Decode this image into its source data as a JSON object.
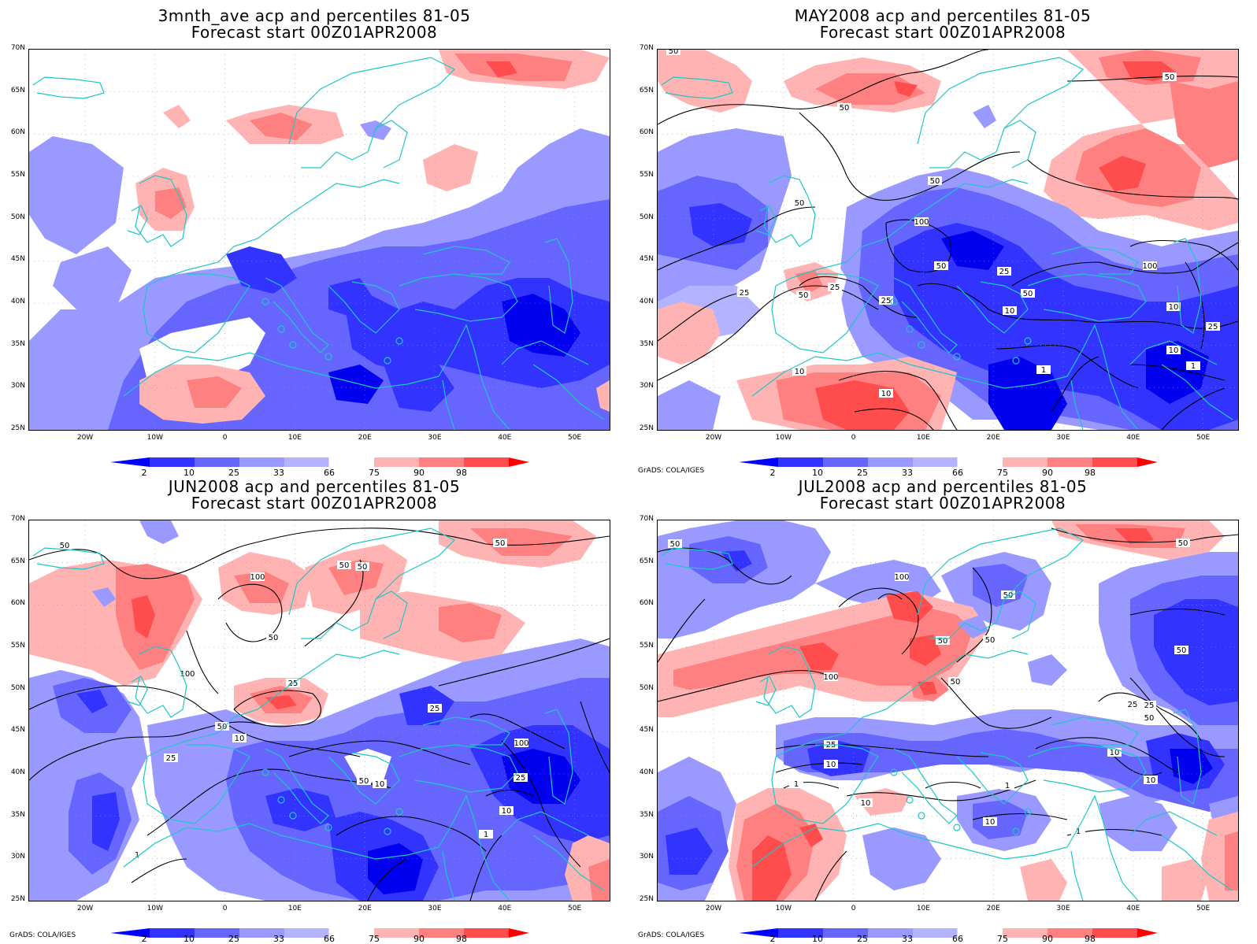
{
  "panels": [
    {
      "title1": "3mnth_ave acp and percentiles 81-05",
      "title2": "Forecast start 00Z01APR2008",
      "credit": ""
    },
    {
      "title1": "MAY2008 acp and percentiles 81-05",
      "title2": "Forecast start 00Z01APR2008",
      "credit": "GrADS: COLA/IGES"
    },
    {
      "title1": "JUN2008 acp and percentiles 81-05",
      "title2": "Forecast start 00Z01APR2008",
      "credit": "GrADS: COLA/IGES"
    },
    {
      "title1": "JUL2008 acp and percentiles 81-05",
      "title2": "Forecast start 00Z01APR2008",
      "credit": "GrADS: COLA/IGES"
    }
  ],
  "axes": {
    "lat_labels": [
      "70N",
      "65N",
      "60N",
      "55N",
      "50N",
      "45N",
      "40N",
      "35N",
      "30N",
      "25N"
    ],
    "lon_labels": [
      "20W",
      "10W",
      "0",
      "10E",
      "20E",
      "30E",
      "40E",
      "50E"
    ],
    "lat_range": [
      25,
      70
    ],
    "lon_range": [
      -28,
      55
    ]
  },
  "colorbar": {
    "labels": [
      "2",
      "10",
      "25",
      "33",
      "66",
      "75",
      "90",
      "98"
    ],
    "colors": [
      "#0000ff",
      "#3333ff",
      "#6666ff",
      "#9999ff",
      "#b3b3ff",
      "#ffffff",
      "#ffb3b3",
      "#ff8080",
      "#ff4d4d",
      "#ff0000"
    ]
  },
  "contour_labels": {
    "may": [
      "50",
      "50",
      "50",
      "50",
      "50",
      "100",
      "50",
      "25",
      "25",
      "25",
      "50",
      "10",
      "100",
      "50",
      "25",
      "25",
      "10",
      "10",
      "1",
      "10",
      "1",
      "10"
    ],
    "jun": [
      "50",
      "50",
      "100",
      "50",
      "50",
      "50",
      "100",
      "25",
      "50",
      "10",
      "25",
      "10",
      "25",
      "50",
      "100",
      "25",
      "10",
      "1",
      "1",
      "10"
    ],
    "jul": [
      "50",
      "50",
      "50",
      "100",
      "50",
      "50",
      "100",
      "50",
      "25",
      "10",
      "1",
      "25",
      "10",
      "1",
      "50",
      "25",
      "50",
      "10",
      "10",
      "10",
      "1"
    ]
  },
  "colors": {
    "coast": "#1fc6c6",
    "contour": "#000000"
  }
}
